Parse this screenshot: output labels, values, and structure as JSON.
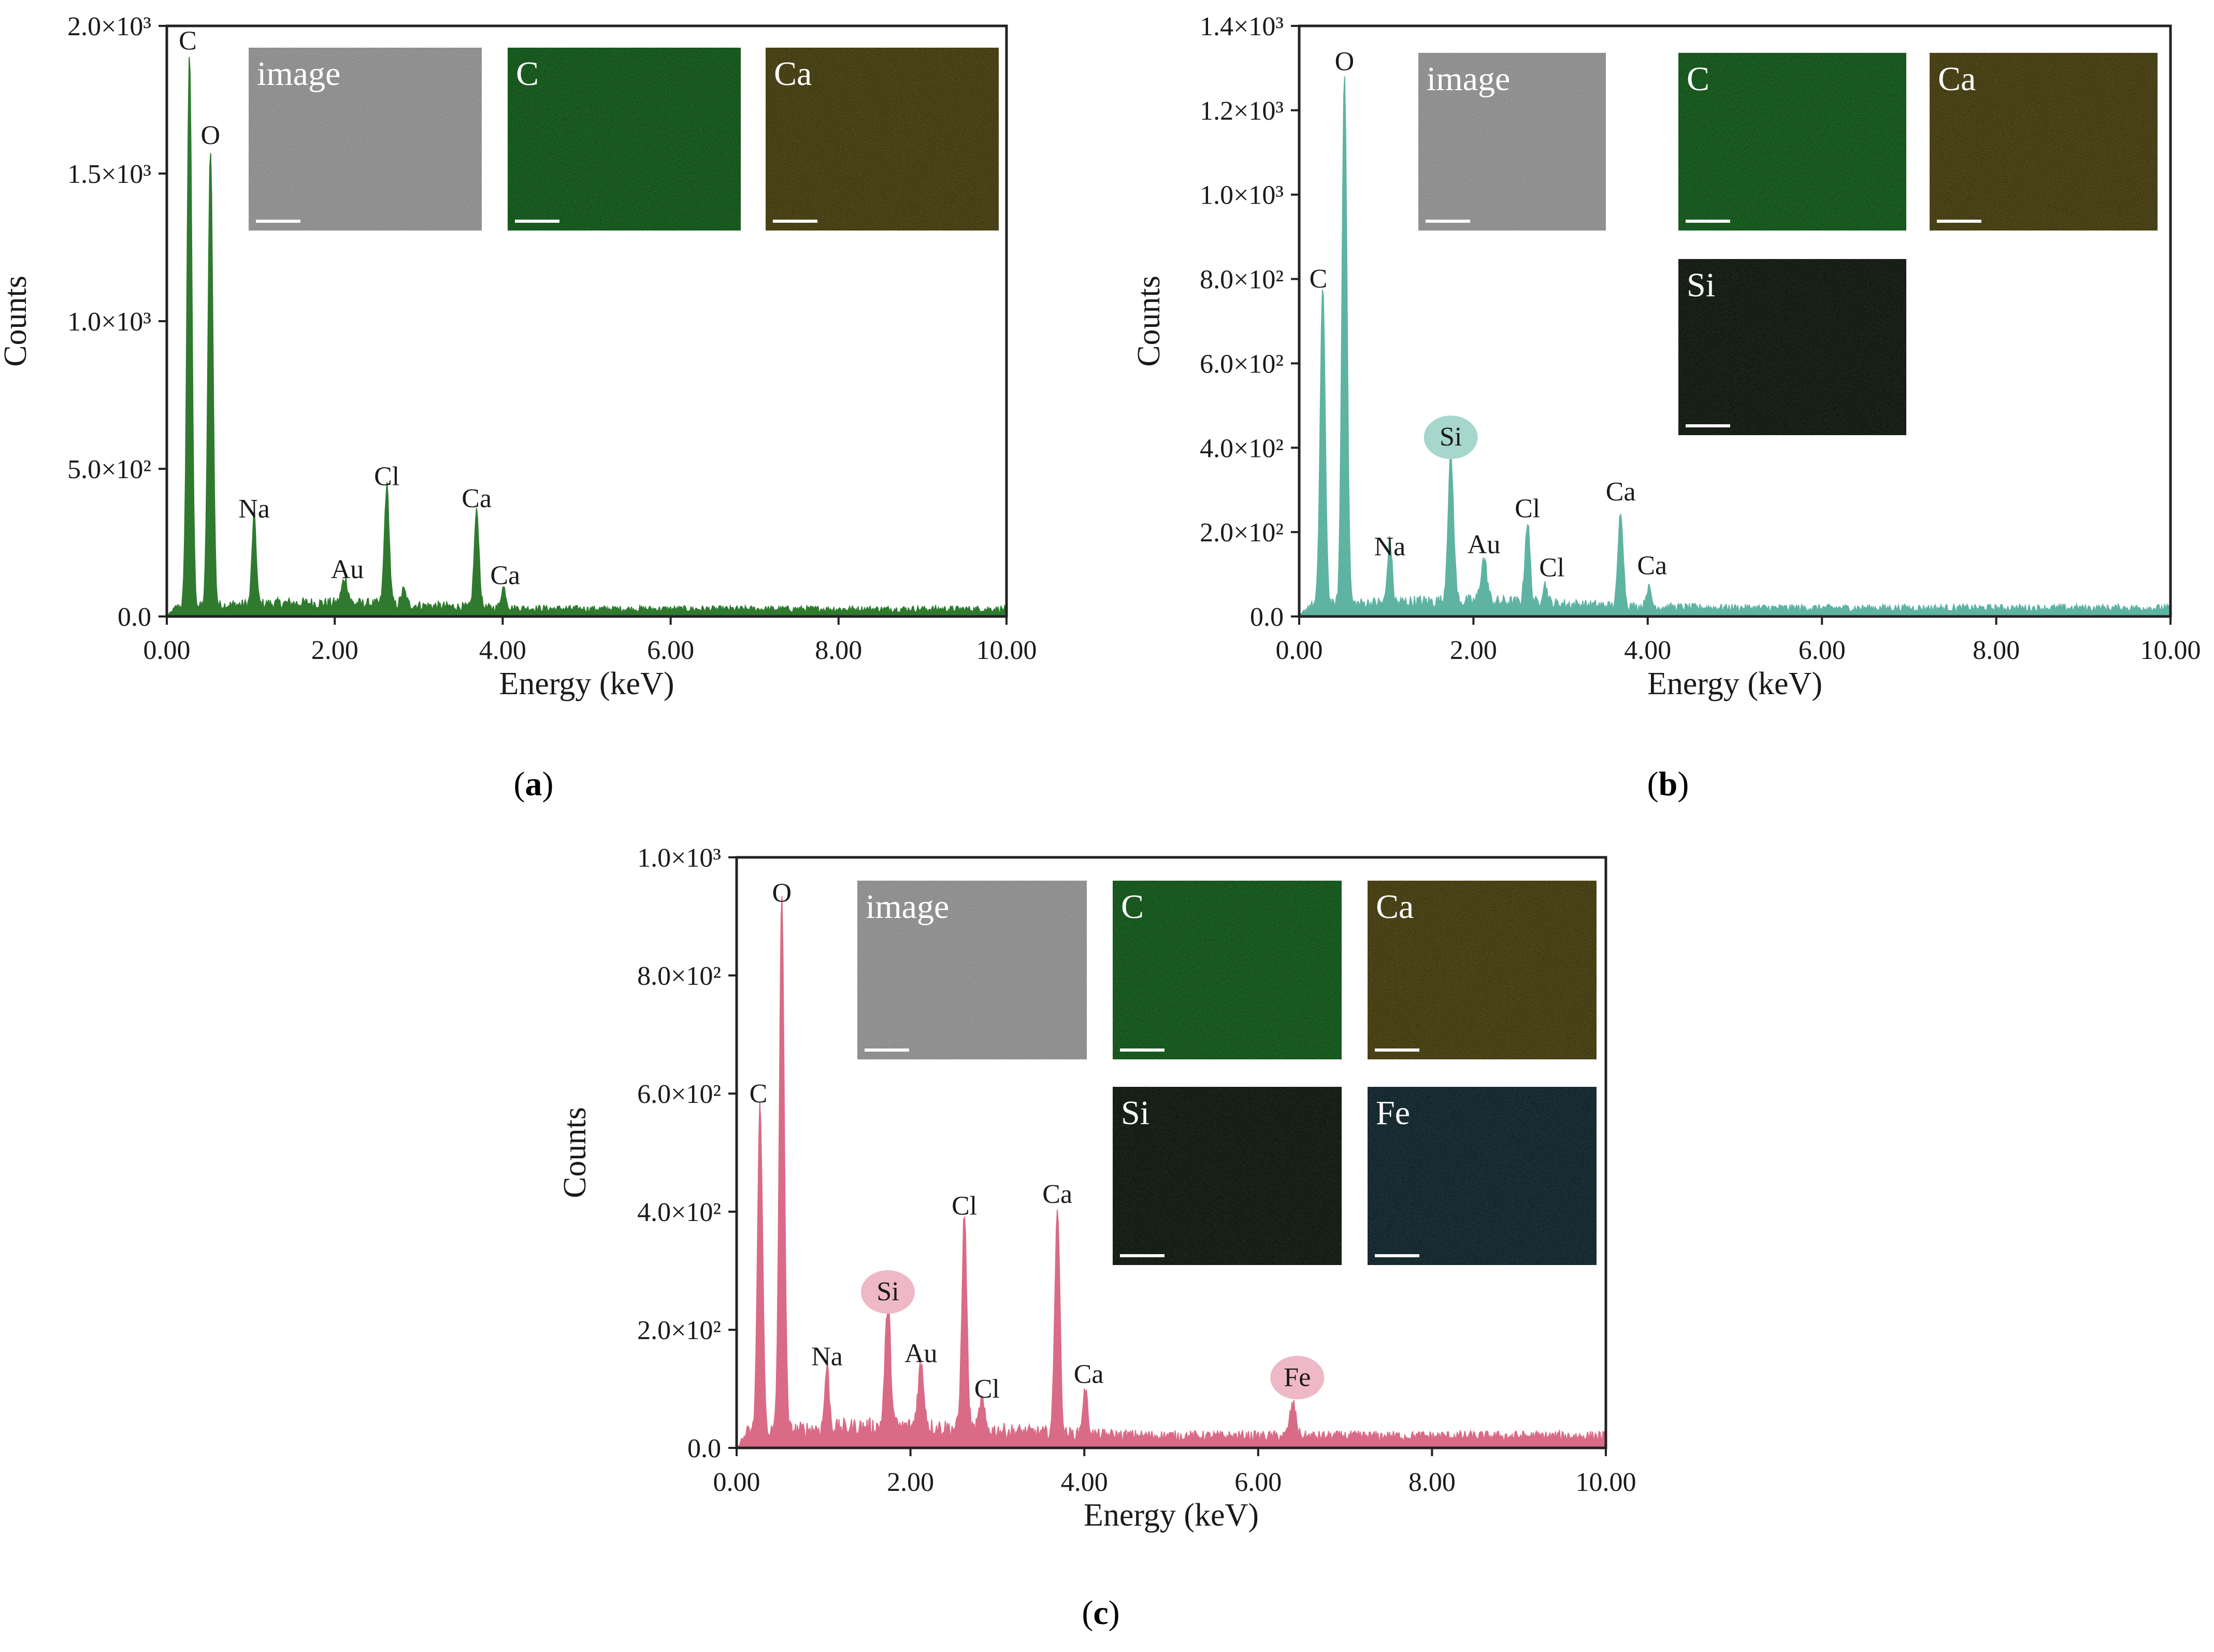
{
  "colors": {
    "a": "#2f7a2f",
    "b": "#5fb3a2",
    "c": "#d96b86",
    "si_badge_b": "#a7d7cc",
    "badge_c": "#efb8c6"
  },
  "chart_data": [
    {
      "id": "a",
      "panel_label": "a",
      "type": "area",
      "xlabel": "Energy (keV)",
      "ylabel": "Counts",
      "xlim": [
        0,
        10
      ],
      "ylim": [
        0,
        2000
      ],
      "x_ticks": [
        "0.00",
        "2.00",
        "4.00",
        "6.00",
        "8.00",
        "10.00"
      ],
      "y_ticks": [
        {
          "v": 0,
          "t": "0.0"
        },
        {
          "v": 500,
          "t": "5.0×10²"
        },
        {
          "v": 1000,
          "t": "1.0×10³"
        },
        {
          "v": 1500,
          "t": "1.5×10³"
        },
        {
          "v": 2000,
          "t": "2.0×10³"
        }
      ],
      "baseline": 25,
      "peaks": [
        {
          "x": 0.27,
          "y": 1880,
          "label": "C",
          "w": 0.04
        },
        {
          "x": 0.52,
          "y": 1550,
          "label": "O",
          "w": 0.04
        },
        {
          "x": 1.04,
          "y": 300,
          "label": "Na",
          "w": 0.035
        },
        {
          "x": 2.12,
          "y": 85,
          "label": "Au",
          "w": 0.05
        },
        {
          "x": 2.62,
          "y": 400,
          "label": "Cl",
          "w": 0.04
        },
        {
          "x": 2.82,
          "y": 50,
          "label": "",
          "w": 0.04
        },
        {
          "x": 3.69,
          "y": 325,
          "label": "Ca",
          "w": 0.04
        },
        {
          "x": 4.01,
          "y": 70,
          "label": "Ca",
          "w": 0.04
        }
      ],
      "labels": [
        {
          "text": "C",
          "x": 0.25,
          "y": 1920
        },
        {
          "text": "O",
          "x": 0.52,
          "y": 1600
        },
        {
          "text": "Na",
          "x": 1.04,
          "y": 335
        },
        {
          "text": "Au",
          "x": 2.15,
          "y": 130
        },
        {
          "text": "Cl",
          "x": 2.62,
          "y": 445
        },
        {
          "text": "Ca",
          "x": 3.69,
          "y": 370
        },
        {
          "text": "Ca",
          "x": 4.03,
          "y": 110
        }
      ],
      "badges": [],
      "maps": [
        "image",
        "C",
        "Ca"
      ]
    },
    {
      "id": "b",
      "panel_label": "b",
      "type": "area",
      "xlabel": "Energy (keV)",
      "ylabel": "Counts",
      "xlim": [
        0,
        10
      ],
      "ylim": [
        0,
        1400
      ],
      "x_ticks": [
        "0.00",
        "2.00",
        "4.00",
        "6.00",
        "8.00",
        "10.00"
      ],
      "y_ticks": [
        {
          "v": 0,
          "t": "0.0"
        },
        {
          "v": 200,
          "t": "2.0×10²"
        },
        {
          "v": 400,
          "t": "4.0×10²"
        },
        {
          "v": 600,
          "t": "6.0×10²"
        },
        {
          "v": 800,
          "t": "8.0×10²"
        },
        {
          "v": 1000,
          "t": "1.0×10³"
        },
        {
          "v": 1200,
          "t": "1.2×10³"
        },
        {
          "v": 1400,
          "t": "1.4×10³"
        }
      ],
      "baseline": 20,
      "peaks": [
        {
          "x": 0.27,
          "y": 750,
          "label": "C",
          "w": 0.04
        },
        {
          "x": 0.52,
          "y": 1265,
          "label": "O",
          "w": 0.04
        },
        {
          "x": 1.04,
          "y": 150,
          "label": "Na",
          "w": 0.035
        },
        {
          "x": 1.74,
          "y": 340,
          "label": "Si",
          "w": 0.045
        },
        {
          "x": 2.12,
          "y": 100,
          "label": "Au",
          "w": 0.05
        },
        {
          "x": 2.62,
          "y": 190,
          "label": "Cl",
          "w": 0.04
        },
        {
          "x": 2.82,
          "y": 45,
          "label": "Cl",
          "w": 0.04
        },
        {
          "x": 3.69,
          "y": 225,
          "label": "Ca",
          "w": 0.04
        },
        {
          "x": 4.01,
          "y": 45,
          "label": "Ca",
          "w": 0.04
        }
      ],
      "labels": [
        {
          "text": "O",
          "x": 0.52,
          "y": 1295
        },
        {
          "text": "C",
          "x": 0.22,
          "y": 780
        },
        {
          "text": "Na",
          "x": 1.04,
          "y": 145
        },
        {
          "text": "Au",
          "x": 2.12,
          "y": 150
        },
        {
          "text": "Cl",
          "x": 2.62,
          "y": 235
        },
        {
          "text": "Cl",
          "x": 2.9,
          "y": 95
        },
        {
          "text": "Ca",
          "x": 3.69,
          "y": 275
        },
        {
          "text": "Ca",
          "x": 4.05,
          "y": 100
        }
      ],
      "badges": [
        {
          "text": "Si",
          "x": 1.74,
          "y": 405,
          "color": "#a7d7cc"
        }
      ],
      "maps": [
        "image",
        "C",
        "Ca",
        "Si"
      ]
    },
    {
      "id": "c",
      "panel_label": "c",
      "type": "area",
      "xlabel": "Energy (keV)",
      "ylabel": "Counts",
      "xlim": [
        0,
        10
      ],
      "ylim": [
        0,
        1000
      ],
      "x_ticks": [
        "0.00",
        "2.00",
        "4.00",
        "6.00",
        "8.00",
        "10.00"
      ],
      "y_ticks": [
        {
          "v": 0,
          "t": "0.0"
        },
        {
          "v": 200,
          "t": "2.0×10²"
        },
        {
          "v": 400,
          "t": "4.0×10²"
        },
        {
          "v": 600,
          "t": "6.0×10²"
        },
        {
          "v": 800,
          "t": "8.0×10²"
        },
        {
          "v": 1000,
          "t": "1.0×10³"
        }
      ],
      "baseline": 20,
      "peaks": [
        {
          "x": 0.27,
          "y": 555,
          "label": "C",
          "w": 0.04
        },
        {
          "x": 0.52,
          "y": 900,
          "label": "O",
          "w": 0.04
        },
        {
          "x": 1.04,
          "y": 105,
          "label": "Na",
          "w": 0.035
        },
        {
          "x": 1.74,
          "y": 205,
          "label": "Si",
          "w": 0.045
        },
        {
          "x": 2.12,
          "y": 105,
          "label": "Au",
          "w": 0.05
        },
        {
          "x": 2.62,
          "y": 360,
          "label": "Cl",
          "w": 0.04
        },
        {
          "x": 2.82,
          "y": 50,
          "label": "Cl",
          "w": 0.04
        },
        {
          "x": 3.69,
          "y": 385,
          "label": "Ca",
          "w": 0.04
        },
        {
          "x": 4.01,
          "y": 75,
          "label": "Ca",
          "w": 0.04
        },
        {
          "x": 6.4,
          "y": 55,
          "label": "Fe",
          "w": 0.05
        }
      ],
      "labels": [
        {
          "text": "O",
          "x": 0.52,
          "y": 925
        },
        {
          "text": "C",
          "x": 0.25,
          "y": 585
        },
        {
          "text": "Na",
          "x": 1.04,
          "y": 140
        },
        {
          "text": "Au",
          "x": 2.12,
          "y": 145
        },
        {
          "text": "Cl",
          "x": 2.62,
          "y": 395
        },
        {
          "text": "Cl",
          "x": 2.88,
          "y": 85
        },
        {
          "text": "Ca",
          "x": 3.69,
          "y": 415
        },
        {
          "text": "Ca",
          "x": 4.05,
          "y": 110
        }
      ],
      "badges": [
        {
          "text": "Si",
          "x": 1.74,
          "y": 250,
          "color": "#efb8c6"
        },
        {
          "text": "Fe",
          "x": 6.45,
          "y": 105,
          "color": "#efb8c6"
        }
      ],
      "maps": [
        "image",
        "C",
        "Ca",
        "Si",
        "Fe"
      ]
    }
  ]
}
